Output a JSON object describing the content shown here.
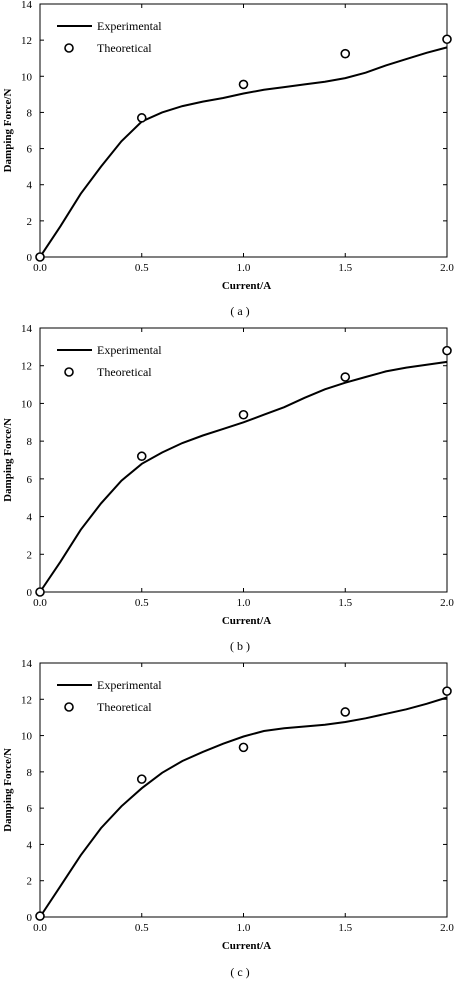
{
  "chart_data": [
    {
      "type": "line",
      "caption": "( a )",
      "xlabel": "Current/A",
      "ylabel": "Damping Force/N",
      "xlim": [
        0,
        2
      ],
      "ylim": [
        0,
        14
      ],
      "xticks": [
        "0.0",
        "0.5",
        "1.0",
        "1.5",
        "2.0"
      ],
      "yticks": [
        "0",
        "2",
        "4",
        "6",
        "8",
        "10",
        "12",
        "14"
      ],
      "legend_position": "top-left",
      "series": [
        {
          "name": "Experimental",
          "style": "line",
          "x": [
            0,
            0.1,
            0.2,
            0.3,
            0.4,
            0.5,
            0.6,
            0.7,
            0.8,
            0.9,
            1.0,
            1.1,
            1.2,
            1.3,
            1.4,
            1.5,
            1.6,
            1.7,
            1.8,
            1.9,
            2.0
          ],
          "y": [
            0,
            1.7,
            3.5,
            5.0,
            6.4,
            7.5,
            8.0,
            8.35,
            8.6,
            8.8,
            9.05,
            9.25,
            9.4,
            9.55,
            9.7,
            9.9,
            10.2,
            10.6,
            10.95,
            11.3,
            11.6
          ]
        },
        {
          "name": "Theoretical",
          "style": "marker",
          "x": [
            0,
            0.5,
            1.0,
            1.5,
            2.0
          ],
          "y": [
            0,
            7.7,
            9.55,
            11.25,
            12.05
          ]
        }
      ]
    },
    {
      "type": "line",
      "caption": "( b )",
      "xlabel": "Current/A",
      "ylabel": "Damping Force/N",
      "xlim": [
        0,
        2
      ],
      "ylim": [
        0,
        14
      ],
      "xticks": [
        "0.0",
        "0.5",
        "1.0",
        "1.5",
        "2.0"
      ],
      "yticks": [
        "0",
        "2",
        "4",
        "6",
        "8",
        "10",
        "12",
        "14"
      ],
      "legend_position": "top-left",
      "series": [
        {
          "name": "Experimental",
          "style": "line",
          "x": [
            0,
            0.1,
            0.2,
            0.3,
            0.4,
            0.5,
            0.6,
            0.7,
            0.8,
            0.9,
            1.0,
            1.1,
            1.2,
            1.3,
            1.4,
            1.5,
            1.6,
            1.7,
            1.8,
            1.9,
            2.0
          ],
          "y": [
            0,
            1.6,
            3.3,
            4.7,
            5.9,
            6.8,
            7.4,
            7.9,
            8.3,
            8.65,
            9.0,
            9.4,
            9.8,
            10.3,
            10.75,
            11.1,
            11.4,
            11.7,
            11.9,
            12.05,
            12.2
          ]
        },
        {
          "name": "Theoretical",
          "style": "marker",
          "x": [
            0,
            0.5,
            1.0,
            1.5,
            2.0
          ],
          "y": [
            0,
            7.2,
            9.4,
            11.4,
            12.8
          ]
        }
      ]
    },
    {
      "type": "line",
      "caption": "( c )",
      "xlabel": "Current/A",
      "ylabel": "Damping Force/N",
      "xlim": [
        0,
        2
      ],
      "ylim": [
        0,
        14
      ],
      "xticks": [
        "0.0",
        "0.5",
        "1.0",
        "1.5",
        "2.0"
      ],
      "yticks": [
        "0",
        "2",
        "4",
        "6",
        "8",
        "10",
        "12",
        "14"
      ],
      "legend_position": "top-left",
      "series": [
        {
          "name": "Experimental",
          "style": "line",
          "x": [
            0,
            0.1,
            0.2,
            0.3,
            0.4,
            0.5,
            0.6,
            0.7,
            0.8,
            0.9,
            1.0,
            1.1,
            1.2,
            1.3,
            1.4,
            1.5,
            1.6,
            1.7,
            1.8,
            1.9,
            2.0
          ],
          "y": [
            0,
            1.7,
            3.4,
            4.9,
            6.1,
            7.1,
            7.95,
            8.6,
            9.1,
            9.55,
            9.95,
            10.25,
            10.4,
            10.5,
            10.6,
            10.75,
            10.95,
            11.2,
            11.45,
            11.75,
            12.1
          ]
        },
        {
          "name": "Theoretical",
          "style": "marker",
          "x": [
            0,
            0.5,
            1.0,
            1.5,
            2.0
          ],
          "y": [
            0.05,
            7.6,
            9.35,
            11.3,
            12.45
          ]
        }
      ]
    }
  ]
}
